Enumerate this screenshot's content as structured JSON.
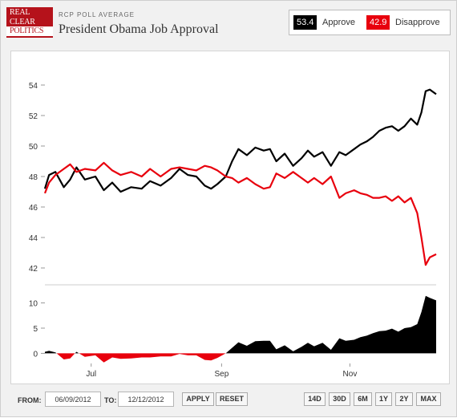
{
  "header": {
    "logo_lines": [
      "REAL",
      "CLEAR",
      "POLITICS"
    ],
    "overline": "RCP POLL AVERAGE",
    "title": "President Obama Job Approval"
  },
  "legend": {
    "approve_value": "53.4",
    "approve_label": "Approve",
    "disapprove_value": "42.9",
    "disapprove_label": "Disapprove",
    "approve_color": "#000000",
    "disapprove_color": "#e8000d"
  },
  "controls": {
    "from_label": "FROM:",
    "from_value": "06/09/2012",
    "to_label": "TO:",
    "to_value": "12/12/2012",
    "apply_label": "APPLY",
    "reset_label": "RESET",
    "range_buttons": [
      "14D",
      "30D",
      "6M",
      "1Y",
      "2Y",
      "MAX"
    ]
  },
  "chart_data": [
    {
      "type": "line",
      "x_range": [
        "2012-06-09",
        "2012-12-12"
      ],
      "x_ticks": [
        {
          "date": "2012-07-01",
          "label": "Jul"
        },
        {
          "date": "2012-09-01",
          "label": "Sep"
        },
        {
          "date": "2012-11-01",
          "label": "Nov"
        }
      ],
      "ylim": [
        41,
        55
      ],
      "y_ticks": [
        42,
        44,
        46,
        48,
        50,
        52,
        54
      ],
      "series": [
        {
          "name": "Approve",
          "color": "#000000",
          "points": [
            [
              "2012-06-09",
              47.2
            ],
            [
              "2012-06-11",
              48.1
            ],
            [
              "2012-06-14",
              48.3
            ],
            [
              "2012-06-18",
              47.3
            ],
            [
              "2012-06-21",
              47.8
            ],
            [
              "2012-06-24",
              48.6
            ],
            [
              "2012-06-28",
              47.8
            ],
            [
              "2012-07-03",
              48.0
            ],
            [
              "2012-07-07",
              47.1
            ],
            [
              "2012-07-11",
              47.6
            ],
            [
              "2012-07-15",
              47.0
            ],
            [
              "2012-07-20",
              47.3
            ],
            [
              "2012-07-25",
              47.2
            ],
            [
              "2012-07-29",
              47.7
            ],
            [
              "2012-08-03",
              47.4
            ],
            [
              "2012-08-08",
              47.9
            ],
            [
              "2012-08-12",
              48.5
            ],
            [
              "2012-08-16",
              48.1
            ],
            [
              "2012-08-20",
              48.0
            ],
            [
              "2012-08-24",
              47.4
            ],
            [
              "2012-08-27",
              47.2
            ],
            [
              "2012-08-30",
              47.5
            ],
            [
              "2012-09-03",
              48.0
            ],
            [
              "2012-09-06",
              49.0
            ],
            [
              "2012-09-09",
              49.8
            ],
            [
              "2012-09-13",
              49.4
            ],
            [
              "2012-09-17",
              49.9
            ],
            [
              "2012-09-21",
              49.7
            ],
            [
              "2012-09-24",
              49.8
            ],
            [
              "2012-09-27",
              49.0
            ],
            [
              "2012-10-01",
              49.5
            ],
            [
              "2012-10-05",
              48.7
            ],
            [
              "2012-10-09",
              49.2
            ],
            [
              "2012-10-12",
              49.7
            ],
            [
              "2012-10-15",
              49.3
            ],
            [
              "2012-10-19",
              49.6
            ],
            [
              "2012-10-23",
              48.7
            ],
            [
              "2012-10-27",
              49.6
            ],
            [
              "2012-10-30",
              49.4
            ],
            [
              "2012-11-03",
              49.8
            ],
            [
              "2012-11-06",
              50.1
            ],
            [
              "2012-11-09",
              50.3
            ],
            [
              "2012-11-12",
              50.6
            ],
            [
              "2012-11-15",
              51.0
            ],
            [
              "2012-11-18",
              51.2
            ],
            [
              "2012-11-21",
              51.3
            ],
            [
              "2012-11-24",
              51.0
            ],
            [
              "2012-11-27",
              51.3
            ],
            [
              "2012-11-30",
              51.8
            ],
            [
              "2012-12-03",
              51.4
            ],
            [
              "2012-12-05",
              52.2
            ],
            [
              "2012-12-07",
              53.6
            ],
            [
              "2012-12-09",
              53.7
            ],
            [
              "2012-12-12",
              53.4
            ]
          ]
        },
        {
          "name": "Disapprove",
          "color": "#e8000d",
          "points": [
            [
              "2012-06-09",
              46.9
            ],
            [
              "2012-06-11",
              47.6
            ],
            [
              "2012-06-14",
              48.1
            ],
            [
              "2012-06-18",
              48.5
            ],
            [
              "2012-06-21",
              48.8
            ],
            [
              "2012-06-24",
              48.3
            ],
            [
              "2012-06-28",
              48.5
            ],
            [
              "2012-07-03",
              48.4
            ],
            [
              "2012-07-07",
              48.9
            ],
            [
              "2012-07-11",
              48.4
            ],
            [
              "2012-07-15",
              48.1
            ],
            [
              "2012-07-20",
              48.3
            ],
            [
              "2012-07-25",
              48.0
            ],
            [
              "2012-07-29",
              48.5
            ],
            [
              "2012-08-03",
              48.0
            ],
            [
              "2012-08-08",
              48.5
            ],
            [
              "2012-08-12",
              48.6
            ],
            [
              "2012-08-16",
              48.5
            ],
            [
              "2012-08-20",
              48.4
            ],
            [
              "2012-08-24",
              48.7
            ],
            [
              "2012-08-27",
              48.6
            ],
            [
              "2012-08-30",
              48.4
            ],
            [
              "2012-09-03",
              48.0
            ],
            [
              "2012-09-06",
              47.9
            ],
            [
              "2012-09-09",
              47.6
            ],
            [
              "2012-09-13",
              47.9
            ],
            [
              "2012-09-17",
              47.5
            ],
            [
              "2012-09-21",
              47.2
            ],
            [
              "2012-09-24",
              47.3
            ],
            [
              "2012-09-27",
              48.2
            ],
            [
              "2012-10-01",
              47.9
            ],
            [
              "2012-10-05",
              48.3
            ],
            [
              "2012-10-09",
              47.9
            ],
            [
              "2012-10-12",
              47.6
            ],
            [
              "2012-10-15",
              47.9
            ],
            [
              "2012-10-19",
              47.5
            ],
            [
              "2012-10-23",
              48.0
            ],
            [
              "2012-10-27",
              46.6
            ],
            [
              "2012-10-30",
              46.9
            ],
            [
              "2012-11-03",
              47.1
            ],
            [
              "2012-11-06",
              46.9
            ],
            [
              "2012-11-09",
              46.8
            ],
            [
              "2012-11-12",
              46.6
            ],
            [
              "2012-11-15",
              46.6
            ],
            [
              "2012-11-18",
              46.7
            ],
            [
              "2012-11-21",
              46.4
            ],
            [
              "2012-11-24",
              46.7
            ],
            [
              "2012-11-27",
              46.3
            ],
            [
              "2012-11-30",
              46.6
            ],
            [
              "2012-12-03",
              45.6
            ],
            [
              "2012-12-05",
              44.0
            ],
            [
              "2012-12-07",
              42.2
            ],
            [
              "2012-12-09",
              42.7
            ],
            [
              "2012-12-12",
              42.9
            ]
          ]
        }
      ]
    },
    {
      "type": "area",
      "ylim": [
        -2,
        12
      ],
      "y_ticks": [
        0,
        5,
        10
      ],
      "positive_color": "#000000",
      "negative_color": "#e8000d"
    }
  ]
}
